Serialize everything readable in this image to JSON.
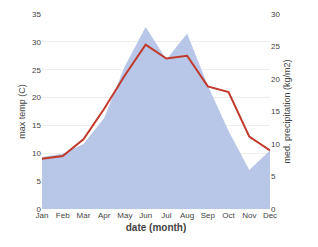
{
  "chart_data": {
    "type": "line",
    "xlabel": "date (month)",
    "ylabel": "max temp (C)",
    "y2label": "med. precipitation (kg/m2)",
    "categories": [
      "Jan",
      "Feb",
      "Mar",
      "Apr",
      "May",
      "Jun",
      "Jul",
      "Aug",
      "Sep",
      "Oct",
      "Nov",
      "Dec"
    ],
    "series": [
      {
        "type": "area",
        "axis": "y2",
        "color": "#b8c6e8",
        "values": [
          8.0,
          8.5,
          10.0,
          14.0,
          22.0,
          28.0,
          23.0,
          27.0,
          19.0,
          12.0,
          6.0,
          9.0
        ]
      },
      {
        "type": "line",
        "color": "#c0392b",
        "values": [
          9.0,
          9.5,
          12.5,
          18.0,
          24.0,
          29.5,
          27.0,
          27.5,
          22.0,
          21.0,
          13.0,
          10.5
        ]
      }
    ],
    "ylim": [
      0,
      35
    ],
    "yticks": [
      0,
      5,
      10,
      15,
      20,
      25,
      30,
      35
    ],
    "y2lim": [
      0,
      30
    ],
    "y2ticks": [
      0,
      5,
      10,
      15,
      20,
      25,
      30
    ],
    "grid": true
  }
}
